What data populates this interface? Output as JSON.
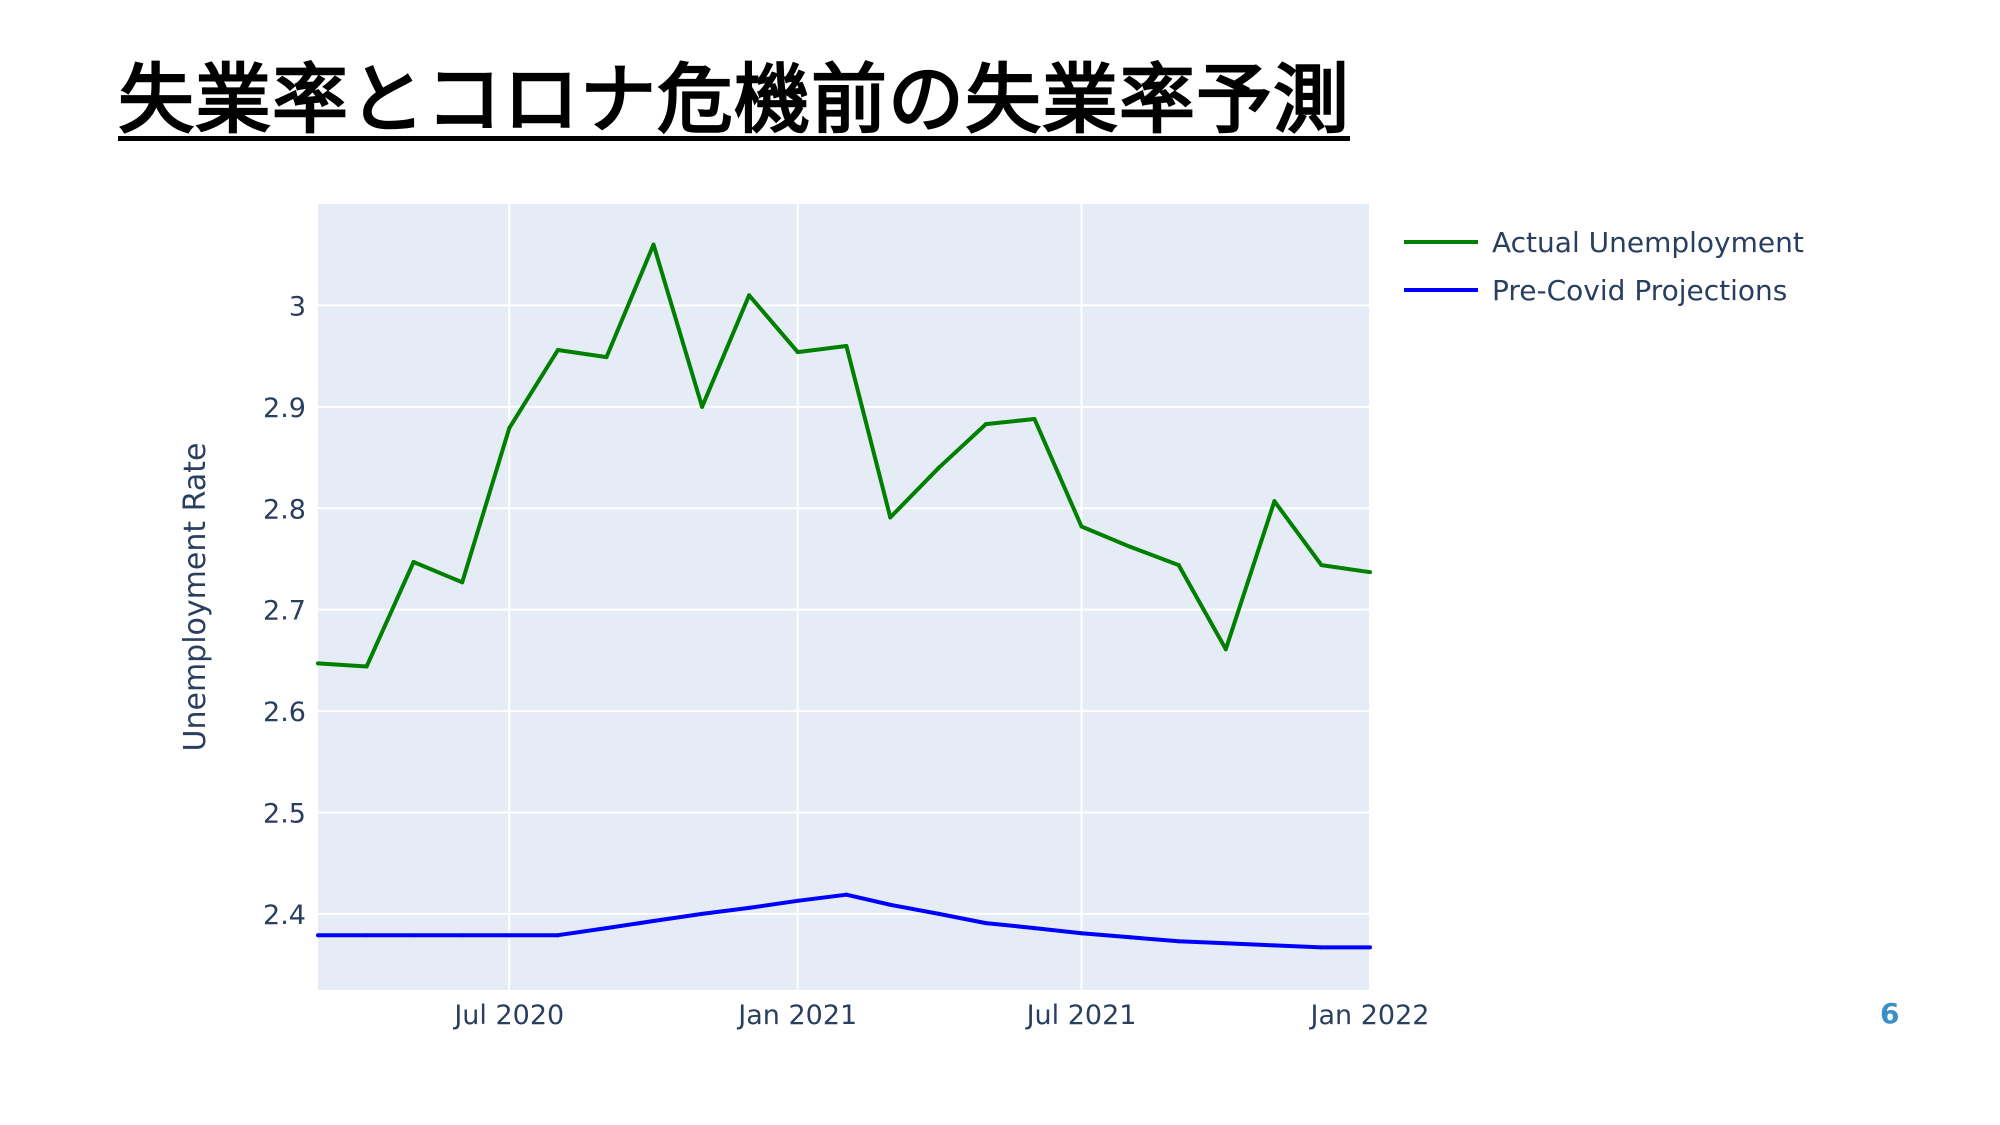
{
  "slide": {
    "title": "失業率とコロナ危機前の失業率予測",
    "page_number": "6"
  },
  "colors": {
    "plot_background": "#e5ecf6",
    "grid": "#ffffff",
    "text": "#2a3f5f",
    "actual": "#008000",
    "projection": "#0000ff"
  },
  "chart_data": {
    "type": "line",
    "title": "",
    "xlabel": "",
    "ylabel": "Unemployment Rate",
    "x_range": [
      "2020-03-01",
      "2022-01-01"
    ],
    "ylim": [
      2.325,
      3.1
    ],
    "grid": true,
    "legend_position": "top-right",
    "x_ticks": [
      {
        "date": "2020-07-01",
        "label": "Jul 2020"
      },
      {
        "date": "2021-01-01",
        "label": "Jan 2021"
      },
      {
        "date": "2021-07-01",
        "label": "Jul 2021"
      },
      {
        "date": "2022-01-01",
        "label": "Jan 2022"
      }
    ],
    "y_ticks": [
      2.4,
      2.5,
      2.6,
      2.7,
      2.8,
      2.9,
      3
    ],
    "x": [
      "2020-03-01",
      "2020-04-01",
      "2020-05-01",
      "2020-06-01",
      "2020-07-01",
      "2020-08-01",
      "2020-09-01",
      "2020-10-01",
      "2020-11-01",
      "2020-12-01",
      "2021-01-01",
      "2021-02-01",
      "2021-03-01",
      "2021-04-01",
      "2021-05-01",
      "2021-06-01",
      "2021-07-01",
      "2021-08-01",
      "2021-09-01",
      "2021-10-01",
      "2021-11-01",
      "2021-12-01",
      "2022-01-01"
    ],
    "series": [
      {
        "name": "Actual Unemployment",
        "color": "#008000",
        "values": [
          2.647,
          2.644,
          2.747,
          2.727,
          2.879,
          2.956,
          2.949,
          3.06,
          2.9,
          3.01,
          2.954,
          2.96,
          2.791,
          2.84,
          2.883,
          2.888,
          2.782,
          2.762,
          2.744,
          2.661,
          2.807,
          2.744,
          2.737
        ]
      },
      {
        "name": "Pre-Covid Projections",
        "color": "#0000ff",
        "values": [
          2.379,
          2.379,
          2.379,
          2.379,
          2.379,
          2.379,
          2.386,
          2.393,
          2.4,
          2.406,
          2.413,
          2.419,
          2.409,
          2.4,
          2.391,
          2.386,
          2.381,
          2.377,
          2.373,
          2.371,
          2.369,
          2.367,
          2.367
        ]
      }
    ]
  }
}
